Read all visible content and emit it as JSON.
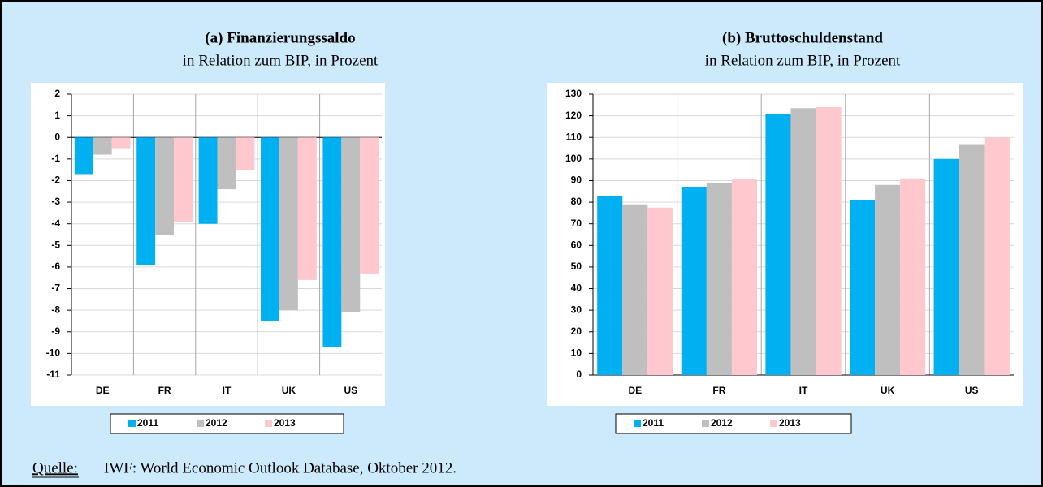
{
  "chart_data": [
    {
      "type": "bar",
      "title": "(a) Finanzierungssaldo",
      "subtitle": "in Relation zum BIP, in Prozent",
      "categories": [
        "DE",
        "FR",
        "IT",
        "UK",
        "US"
      ],
      "series": [
        {
          "name": "2011",
          "color": "#00b0f0",
          "values": [
            -1.7,
            -5.9,
            -4.0,
            -8.5,
            -9.7
          ]
        },
        {
          "name": "2012",
          "color": "#bfbfbf",
          "values": [
            -0.8,
            -4.5,
            -2.4,
            -8.0,
            -8.1
          ]
        },
        {
          "name": "2013",
          "color": "#ffc7ce",
          "values": [
            -0.5,
            -3.9,
            -1.5,
            -6.6,
            -6.3
          ]
        }
      ],
      "ylim": [
        -11,
        2
      ],
      "yticks": [
        -11,
        -10,
        -9,
        -8,
        -7,
        -6,
        -5,
        -4,
        -3,
        -2,
        -1,
        0,
        1,
        2
      ],
      "grid": true,
      "legend": "bottom"
    },
    {
      "type": "bar",
      "title": "(b) Bruttoschuldenstand",
      "subtitle": "in Relation zum BIP, in Prozent",
      "categories": [
        "DE",
        "FR",
        "IT",
        "UK",
        "US"
      ],
      "series": [
        {
          "name": "2011",
          "color": "#00b0f0",
          "values": [
            83,
            87,
            121,
            81,
            100
          ]
        },
        {
          "name": "2012",
          "color": "#bfbfbf",
          "values": [
            79,
            89,
            123.5,
            88,
            106.5
          ]
        },
        {
          "name": "2013",
          "color": "#ffc7ce",
          "values": [
            77.5,
            90.5,
            124,
            91,
            110
          ]
        }
      ],
      "ylim": [
        0,
        130
      ],
      "yticks": [
        0,
        10,
        20,
        30,
        40,
        50,
        60,
        70,
        80,
        90,
        100,
        110,
        120,
        130
      ],
      "grid": true,
      "legend": "bottom"
    }
  ],
  "source": {
    "label": "Quelle:",
    "text": "IWF: World Economic Outlook Database, Oktober 2012."
  }
}
